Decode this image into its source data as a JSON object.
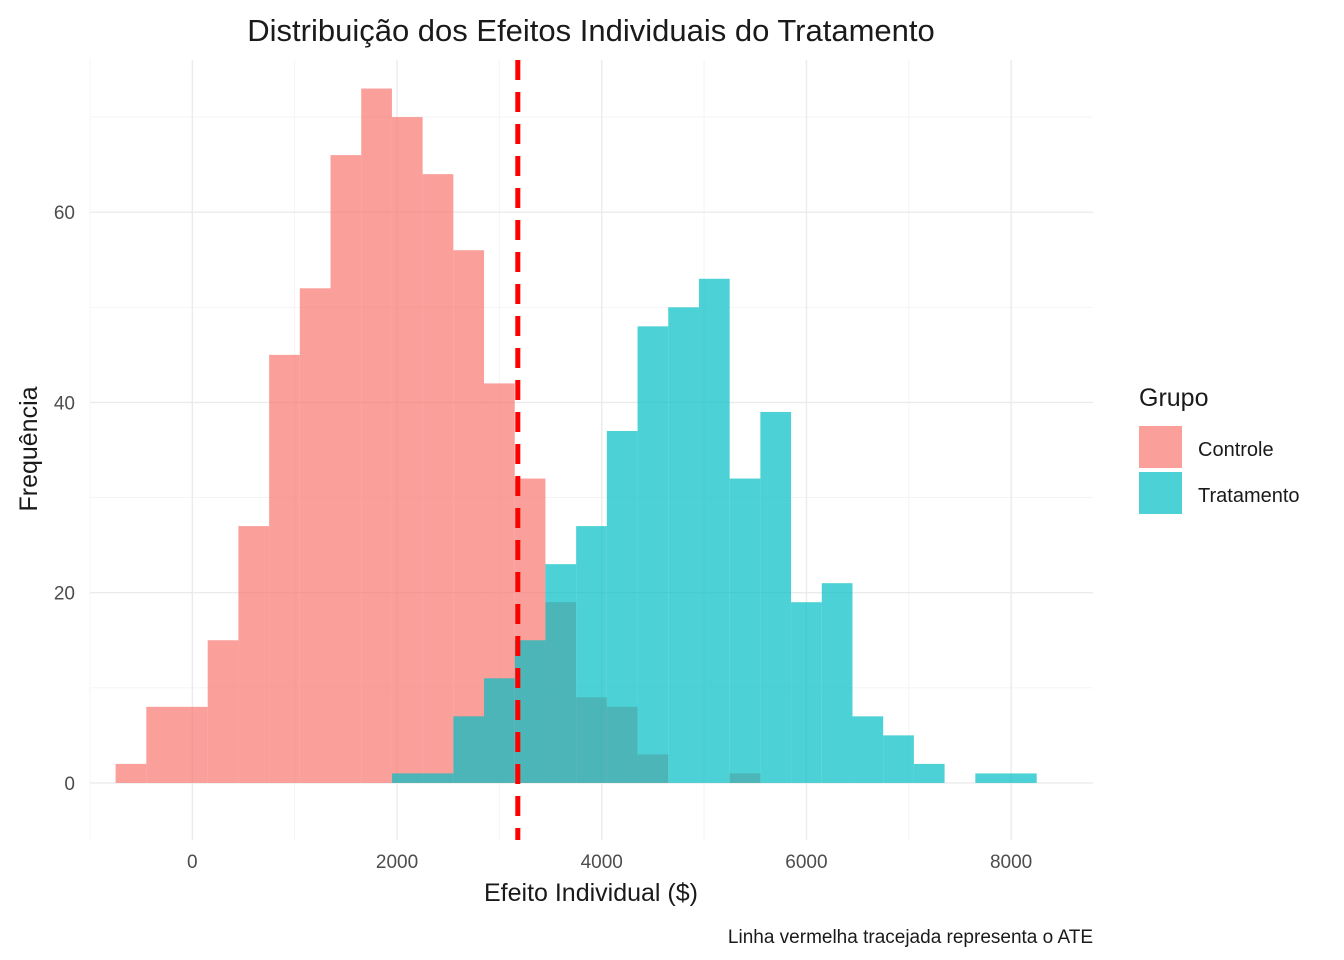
{
  "chart_data": {
    "type": "histogram",
    "title": "Distribuição dos Efeitos Individuais do Tratamento",
    "xlabel": "Efeito Individual ($)",
    "ylabel": "Frequência",
    "caption": "Linha vermelha tracejada representa o ATE",
    "xlim": [
      -1000,
      8800
    ],
    "ylim": [
      -6,
      76
    ],
    "x_ticks": [
      0,
      2000,
      4000,
      6000,
      8000
    ],
    "x_tick_labels": [
      "0",
      "2000",
      "4000",
      "6000",
      "8000"
    ],
    "y_ticks": [
      0,
      20,
      40,
      60
    ],
    "y_tick_labels": [
      "0",
      "20",
      "40",
      "60"
    ],
    "grid": true,
    "bin_width": 300,
    "ate": 3180,
    "ate_line": {
      "color": "#ff0000",
      "style": "dashed"
    },
    "legend": {
      "title": "Grupo",
      "position": "right",
      "entries": [
        "Controle",
        "Tratamento"
      ]
    },
    "series": [
      {
        "name": "Controle",
        "color": "#f8766d",
        "bins": [
          {
            "x0": -750,
            "x1": -450,
            "count": 2
          },
          {
            "x0": -450,
            "x1": -150,
            "count": 8
          },
          {
            "x0": -150,
            "x1": 150,
            "count": 8
          },
          {
            "x0": 150,
            "x1": 450,
            "count": 15
          },
          {
            "x0": 450,
            "x1": 750,
            "count": 27
          },
          {
            "x0": 750,
            "x1": 1050,
            "count": 45
          },
          {
            "x0": 1050,
            "x1": 1350,
            "count": 52
          },
          {
            "x0": 1350,
            "x1": 1650,
            "count": 66
          },
          {
            "x0": 1650,
            "x1": 1950,
            "count": 73
          },
          {
            "x0": 1950,
            "x1": 2250,
            "count": 70
          },
          {
            "x0": 2250,
            "x1": 2550,
            "count": 64
          },
          {
            "x0": 2550,
            "x1": 2850,
            "count": 56
          },
          {
            "x0": 2850,
            "x1": 3150,
            "count": 42
          },
          {
            "x0": 3150,
            "x1": 3450,
            "count": 32
          },
          {
            "x0": 3450,
            "x1": 3750,
            "count": 19
          },
          {
            "x0": 3750,
            "x1": 4050,
            "count": 9
          },
          {
            "x0": 4050,
            "x1": 4350,
            "count": 8
          },
          {
            "x0": 4350,
            "x1": 4650,
            "count": 3
          },
          {
            "x0": 4650,
            "x1": 4950,
            "count": 0
          },
          {
            "x0": 4950,
            "x1": 5250,
            "count": 0
          },
          {
            "x0": 5250,
            "x1": 5550,
            "count": 1
          }
        ]
      },
      {
        "name": "Tratamento",
        "color": "#00bfc4",
        "bins": [
          {
            "x0": 1950,
            "x1": 2250,
            "count": 1
          },
          {
            "x0": 2250,
            "x1": 2550,
            "count": 1
          },
          {
            "x0": 2550,
            "x1": 2850,
            "count": 7
          },
          {
            "x0": 2850,
            "x1": 3150,
            "count": 11
          },
          {
            "x0": 3150,
            "x1": 3450,
            "count": 15
          },
          {
            "x0": 3450,
            "x1": 3750,
            "count": 23
          },
          {
            "x0": 3750,
            "x1": 4050,
            "count": 27
          },
          {
            "x0": 4050,
            "x1": 4350,
            "count": 37
          },
          {
            "x0": 4350,
            "x1": 4650,
            "count": 48
          },
          {
            "x0": 4650,
            "x1": 4950,
            "count": 50
          },
          {
            "x0": 4950,
            "x1": 5250,
            "count": 53
          },
          {
            "x0": 5250,
            "x1": 5550,
            "count": 32
          },
          {
            "x0": 5550,
            "x1": 5850,
            "count": 39
          },
          {
            "x0": 5850,
            "x1": 6150,
            "count": 19
          },
          {
            "x0": 6150,
            "x1": 6450,
            "count": 21
          },
          {
            "x0": 6450,
            "x1": 6750,
            "count": 7
          },
          {
            "x0": 6750,
            "x1": 7050,
            "count": 5
          },
          {
            "x0": 7050,
            "x1": 7350,
            "count": 2
          },
          {
            "x0": 7350,
            "x1": 7650,
            "count": 0
          },
          {
            "x0": 7650,
            "x1": 7950,
            "count": 1
          },
          {
            "x0": 7950,
            "x1": 8250,
            "count": 1
          }
        ]
      }
    ]
  }
}
